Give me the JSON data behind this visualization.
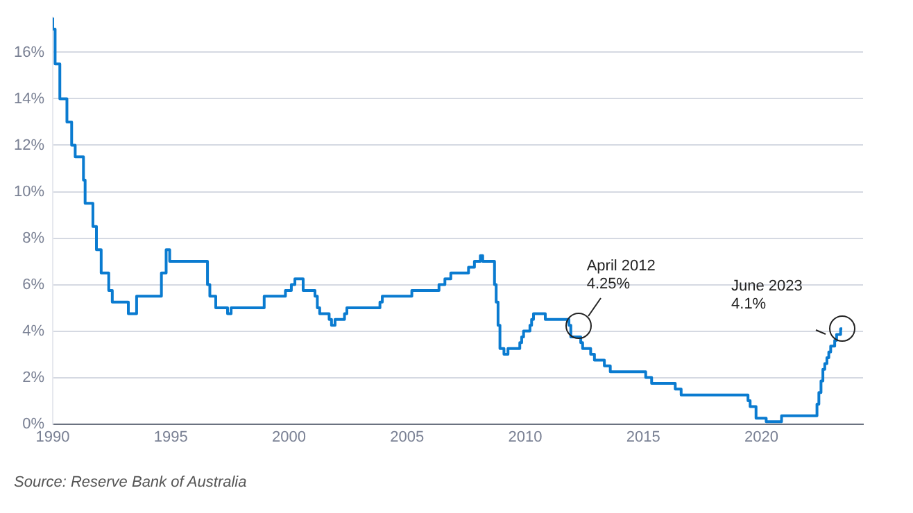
{
  "chart_data": {
    "type": "step",
    "series": [
      {
        "color": "#0a7bd0",
        "x": [
          1990.0,
          1990.1,
          1990.3,
          1990.6,
          1990.8,
          1990.95,
          1991.3,
          1991.37,
          1991.7,
          1991.85,
          1992.05,
          1992.37,
          1992.52,
          1993.2,
          1993.55,
          1994.6,
          1994.8,
          1994.95,
          1996.55,
          1996.65,
          1996.9,
          1997.4,
          1997.55,
          1998.95,
          1999.85,
          2000.1,
          2000.25,
          2000.35,
          2000.6,
          2001.1,
          2001.2,
          2001.3,
          2001.7,
          2001.8,
          2001.95,
          2002.35,
          2002.45,
          2003.85,
          2003.95,
          2005.2,
          2006.35,
          2006.6,
          2006.85,
          2007.6,
          2007.85,
          2008.1,
          2008.2,
          2008.7,
          2008.77,
          2008.85,
          2008.93,
          2009.1,
          2009.27,
          2009.77,
          2009.85,
          2009.93,
          2010.2,
          2010.27,
          2010.35,
          2010.85,
          2011.85,
          2011.93,
          2012.35,
          2012.43,
          2012.77,
          2012.93,
          2013.35,
          2013.6,
          2015.1,
          2015.35,
          2016.35,
          2016.6,
          2019.43,
          2019.52,
          2019.77,
          2020.2,
          2020.85,
          2022.35,
          2022.43,
          2022.52,
          2022.6,
          2022.68,
          2022.77,
          2022.85,
          2022.93,
          2023.1,
          2023.18,
          2023.35,
          2023.42
        ],
        "values": [
          17.5,
          17,
          15.5,
          14,
          13,
          12,
          11.5,
          10.5,
          9.5,
          8.5,
          7.5,
          6.5,
          5.75,
          5.25,
          4.75,
          5.5,
          6.5,
          7.5,
          7,
          6,
          5.5,
          5,
          4.75,
          5,
          5.5,
          5.75,
          6,
          6.25,
          6.25,
          5.75,
          5.5,
          5,
          4.75,
          4.5,
          4.25,
          4.5,
          4.75,
          5,
          5.25,
          5.5,
          5.75,
          6,
          6.25,
          6.5,
          6.75,
          7,
          7.25,
          7,
          6,
          5.25,
          4.25,
          3.25,
          3,
          3.25,
          3.5,
          3.75,
          4,
          4.25,
          4.5,
          4.75,
          4.5,
          4.25,
          3.75,
          3.5,
          3.25,
          3,
          2.75,
          2.5,
          2.25,
          2,
          1.75,
          1.5,
          1.25,
          1,
          0.75,
          0.25,
          0.1,
          0.35,
          0.85,
          1.35,
          1.85,
          2.35,
          2.6,
          2.85,
          3.1,
          3.35,
          3.6,
          3.85,
          4.1
        ]
      }
    ],
    "xlim": [
      1990,
      2024.3
    ],
    "xticks": [
      1990,
      1995,
      2000,
      2005,
      2010,
      2015,
      2020
    ],
    "ylim": [
      0,
      17.5
    ],
    "yticks": [
      {
        "value": 0,
        "label": "0%"
      },
      {
        "value": 2,
        "label": "2%"
      },
      {
        "value": 4,
        "label": "4%"
      },
      {
        "value": 6,
        "label": "6%"
      },
      {
        "value": 8,
        "label": "8%"
      },
      {
        "value": 10,
        "label": "10%"
      },
      {
        "value": 12,
        "label": "12%"
      },
      {
        "value": 14,
        "label": "14%"
      },
      {
        "value": 16,
        "label": "16%"
      }
    ],
    "grid": "y",
    "legend": false,
    "annotations": [
      {
        "text": "April 2012\n4.25%",
        "x": 2012.25,
        "y": 4.25
      },
      {
        "text": "June 2023\n4.1%",
        "x": 2023.42,
        "y": 4.1
      },
      "Source: Reserve Bank of Australia"
    ]
  }
}
